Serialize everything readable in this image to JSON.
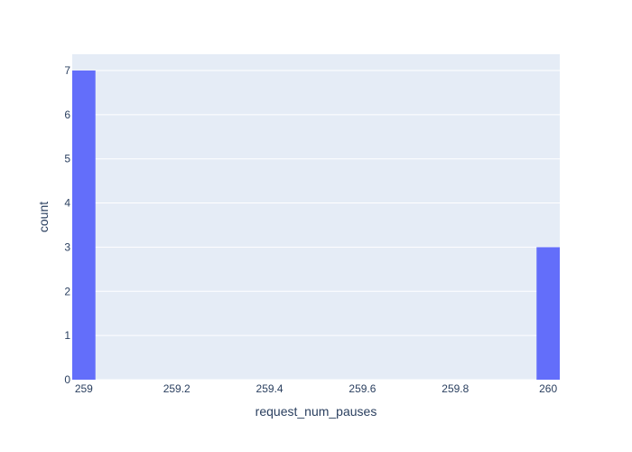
{
  "colors": {
    "plot_background": "#e5ecf6",
    "gridline": "#ffffff",
    "bar": "#636efa",
    "text": "#2a3f5f",
    "page_background": "#ffffff"
  },
  "chart_data": {
    "type": "bar",
    "title": "",
    "xlabel": "request_num_pauses",
    "ylabel": "count",
    "xlim": [
      258.975,
      260.025
    ],
    "ylim": [
      0,
      7.368
    ],
    "grid": true,
    "x_ticks": [
      259,
      259.2,
      259.4,
      259.6,
      259.8,
      260
    ],
    "x_tick_labels": [
      "259",
      "259.2",
      "259.4",
      "259.6",
      "259.8",
      "260"
    ],
    "y_ticks": [
      0,
      1,
      2,
      3,
      4,
      5,
      6,
      7
    ],
    "y_tick_labels": [
      "0",
      "1",
      "2",
      "3",
      "4",
      "5",
      "6",
      "7"
    ],
    "bins": [
      {
        "x0": 258.975,
        "x1": 259.025,
        "value": 7
      },
      {
        "x0": 259.975,
        "x1": 260.025,
        "value": 3
      }
    ]
  }
}
